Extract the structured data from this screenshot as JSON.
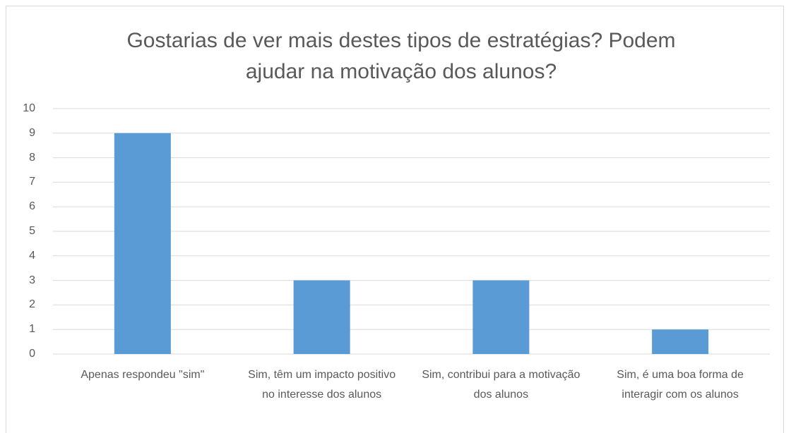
{
  "chart_data": {
    "type": "bar",
    "title": "Gostarias de ver mais destes tipos de estratégias? Podem ajudar na motivação dos alunos?",
    "categories": [
      "Apenas respondeu \"sim\"",
      "Sim, têm um impacto positivo no interesse dos alunos",
      "Sim, contribui para a motivação dos alunos",
      "Sim, é uma boa forma de interagir com os alunos"
    ],
    "values": [
      9,
      3,
      3,
      1
    ],
    "color": "#5b9bd5",
    "ylim": [
      0,
      10
    ],
    "yticks": [
      0,
      1,
      2,
      3,
      4,
      5,
      6,
      7,
      8,
      9,
      10
    ],
    "grid": true
  }
}
